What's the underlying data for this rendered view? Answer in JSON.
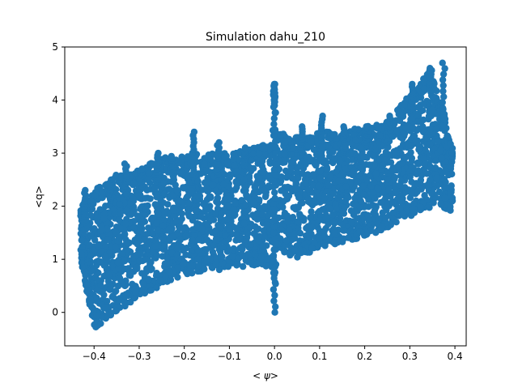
{
  "chart_data": {
    "type": "scatter",
    "title": "Simulation dahu_210",
    "xlabel": "< ψ>",
    "ylabel": "<q>",
    "xlim": [
      -0.465,
      0.425
    ],
    "ylim": [
      -0.63,
      5.0
    ],
    "x_ticks": [
      -0.4,
      -0.3,
      -0.2,
      -0.1,
      0.0,
      0.1,
      0.2,
      0.3,
      0.4
    ],
    "x_tick_labels": [
      "−0.4",
      "−0.3",
      "−0.2",
      "−0.1",
      "0.0",
      "0.1",
      "0.2",
      "0.3",
      "0.4"
    ],
    "y_ticks": [
      0,
      1,
      2,
      3,
      4,
      5
    ],
    "y_tick_labels": [
      "0",
      "1",
      "2",
      "3",
      "4",
      "5"
    ],
    "grid": false,
    "marker_color": "#1f77b4",
    "x_range": [
      -0.43,
      0.395
    ],
    "envelope": {
      "x": [
        -0.43,
        -0.4,
        -0.35,
        -0.3,
        -0.25,
        -0.2,
        -0.15,
        -0.1,
        -0.05,
        -0.005,
        0.0,
        0.005,
        0.05,
        0.1,
        0.15,
        0.2,
        0.25,
        0.3,
        0.35,
        0.395
      ],
      "upper": [
        2.0,
        2.3,
        2.6,
        2.7,
        2.9,
        3.0,
        3.0,
        3.0,
        3.1,
        3.2,
        4.3,
        3.4,
        3.3,
        3.4,
        3.4,
        3.5,
        3.6,
        4.1,
        4.6,
        3.2
      ],
      "lower": [
        1.0,
        -0.3,
        0.0,
        0.3,
        0.5,
        0.7,
        0.8,
        0.8,
        0.9,
        0.8,
        0.0,
        1.2,
        1.0,
        1.2,
        1.3,
        1.4,
        1.6,
        1.8,
        2.0,
        1.9
      ],
      "peaks_x": [
        -0.42,
        -0.365,
        -0.33,
        -0.295,
        -0.26,
        -0.225,
        -0.18,
        -0.125,
        -0.065,
        0.0,
        0.06,
        0.105,
        0.155,
        0.205,
        0.255,
        0.305,
        0.345,
        0.375
      ],
      "peaks_y": [
        2.3,
        2.4,
        2.8,
        2.7,
        3.0,
        2.9,
        3.4,
        3.2,
        3.1,
        4.3,
        3.5,
        3.7,
        3.5,
        3.5,
        3.7,
        4.3,
        4.6,
        4.7
      ]
    }
  }
}
